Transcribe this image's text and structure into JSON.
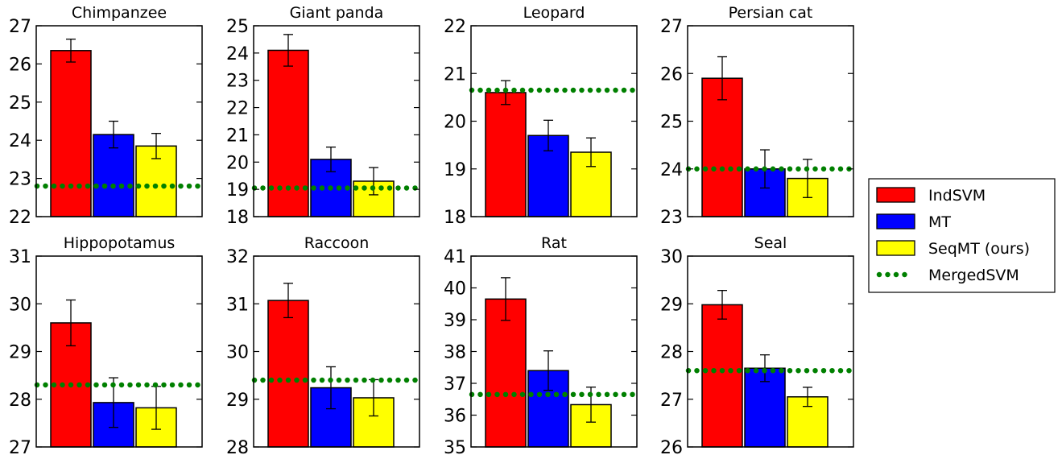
{
  "chart_data": {
    "type": "bar",
    "grid": false,
    "legend_placement": "right",
    "legend": [
      {
        "label": "IndSVM",
        "style": "bar",
        "color": "#ff0000"
      },
      {
        "label": "MT",
        "style": "bar",
        "color": "#0000ff"
      },
      {
        "label": "SeqMT (ours)",
        "style": "bar",
        "color": "#ffff00"
      },
      {
        "label": "MergedSVM",
        "style": "dotted-line",
        "color": "#008000"
      }
    ],
    "panels": [
      {
        "title": "Chimpanzee",
        "ylim": [
          22,
          27
        ],
        "yticks": [
          22,
          23,
          24,
          25,
          26,
          27
        ],
        "series": [
          {
            "name": "IndSVM",
            "value": 26.35,
            "err": 0.3
          },
          {
            "name": "MT",
            "value": 24.15,
            "err": 0.35
          },
          {
            "name": "SeqMT (ours)",
            "value": 23.85,
            "err": 0.33
          }
        ],
        "merged_svm": 22.8
      },
      {
        "title": "Giant panda",
        "ylim": [
          18,
          25
        ],
        "yticks": [
          18,
          19,
          20,
          21,
          22,
          23,
          24,
          25
        ],
        "series": [
          {
            "name": "IndSVM",
            "value": 24.1,
            "err": 0.58
          },
          {
            "name": "MT",
            "value": 20.1,
            "err": 0.45
          },
          {
            "name": "SeqMT (ours)",
            "value": 19.3,
            "err": 0.5
          }
        ],
        "merged_svm": 19.05
      },
      {
        "title": "Leopard",
        "ylim": [
          18,
          22
        ],
        "yticks": [
          18,
          19,
          20,
          21,
          22
        ],
        "series": [
          {
            "name": "IndSVM",
            "value": 20.6,
            "err": 0.25
          },
          {
            "name": "MT",
            "value": 19.7,
            "err": 0.32
          },
          {
            "name": "SeqMT (ours)",
            "value": 19.35,
            "err": 0.3
          }
        ],
        "merged_svm": 20.65
      },
      {
        "title": "Persian cat",
        "ylim": [
          23,
          27
        ],
        "yticks": [
          23,
          24,
          25,
          26,
          27
        ],
        "series": [
          {
            "name": "IndSVM",
            "value": 25.9,
            "err": 0.45
          },
          {
            "name": "MT",
            "value": 24.0,
            "err": 0.4
          },
          {
            "name": "SeqMT (ours)",
            "value": 23.8,
            "err": 0.4
          }
        ],
        "merged_svm": 24.0
      },
      {
        "title": "Hippopotamus",
        "ylim": [
          27,
          31
        ],
        "yticks": [
          27,
          28,
          29,
          30,
          31
        ],
        "series": [
          {
            "name": "IndSVM",
            "value": 29.6,
            "err": 0.48
          },
          {
            "name": "MT",
            "value": 27.93,
            "err": 0.52
          },
          {
            "name": "SeqMT (ours)",
            "value": 27.82,
            "err": 0.45
          }
        ],
        "merged_svm": 28.3
      },
      {
        "title": "Raccoon",
        "ylim": [
          28,
          32
        ],
        "yticks": [
          28,
          29,
          30,
          31,
          32
        ],
        "series": [
          {
            "name": "IndSVM",
            "value": 31.07,
            "err": 0.36
          },
          {
            "name": "MT",
            "value": 29.24,
            "err": 0.44
          },
          {
            "name": "SeqMT (ours)",
            "value": 29.03,
            "err": 0.38
          }
        ],
        "merged_svm": 29.4
      },
      {
        "title": "Rat",
        "ylim": [
          35,
          41
        ],
        "yticks": [
          35,
          36,
          37,
          38,
          39,
          40,
          41
        ],
        "series": [
          {
            "name": "IndSVM",
            "value": 39.65,
            "err": 0.67
          },
          {
            "name": "MT",
            "value": 37.4,
            "err": 0.62
          },
          {
            "name": "SeqMT (ours)",
            "value": 36.33,
            "err": 0.55
          }
        ],
        "merged_svm": 36.65
      },
      {
        "title": "Seal",
        "ylim": [
          26,
          30
        ],
        "yticks": [
          26,
          27,
          28,
          29,
          30
        ],
        "series": [
          {
            "name": "IndSVM",
            "value": 28.98,
            "err": 0.3
          },
          {
            "name": "MT",
            "value": 27.65,
            "err": 0.28
          },
          {
            "name": "SeqMT (ours)",
            "value": 27.05,
            "err": 0.2
          }
        ],
        "merged_svm": 27.6
      }
    ]
  }
}
